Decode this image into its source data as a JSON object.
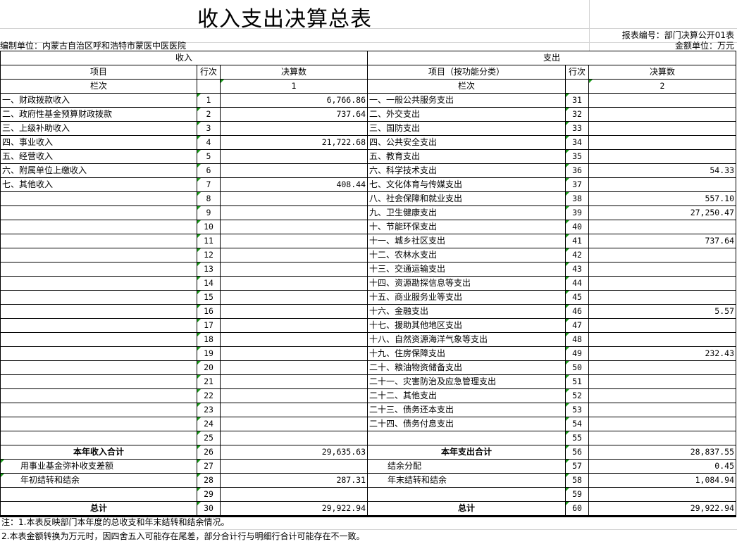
{
  "title": "收入支出决算总表",
  "report_code": "报表编号：部门决算公开01表",
  "unit_org": "编制单位：内蒙古自治区呼和浩特市蒙医中医医院",
  "amount_unit": "金额单位：万元",
  "header": {
    "income": "收入",
    "expense": "支出",
    "item": "项目",
    "row_no": "行次",
    "amount": "决算数",
    "expense_item": "项目（按功能分类）",
    "column_label": "栏次",
    "income_col": "1",
    "expense_col": "2"
  },
  "rows": [
    {
      "in_item": "一、财政拨款收入",
      "in_no": "1",
      "in_amt": "6,766.86",
      "ex_item": "一、一般公共服务支出",
      "ex_no": "31",
      "ex_amt": ""
    },
    {
      "in_item": "二、政府性基金预算财政拨款",
      "in_no": "2",
      "in_amt": "737.64",
      "ex_item": "二、外交支出",
      "ex_no": "32",
      "ex_amt": ""
    },
    {
      "in_item": "三、上级补助收入",
      "in_no": "3",
      "in_amt": "",
      "ex_item": "三、国防支出",
      "ex_no": "33",
      "ex_amt": ""
    },
    {
      "in_item": "四、事业收入",
      "in_no": "4",
      "in_amt": "21,722.68",
      "ex_item": "四、公共安全支出",
      "ex_no": "34",
      "ex_amt": ""
    },
    {
      "in_item": "五、经营收入",
      "in_no": "5",
      "in_amt": "",
      "ex_item": "五、教育支出",
      "ex_no": "35",
      "ex_amt": ""
    },
    {
      "in_item": "六、附属单位上缴收入",
      "in_no": "6",
      "in_amt": "",
      "ex_item": "六、科学技术支出",
      "ex_no": "36",
      "ex_amt": "54.33"
    },
    {
      "in_item": "七、其他收入",
      "in_no": "7",
      "in_amt": "408.44",
      "ex_item": "七、文化体育与传媒支出",
      "ex_no": "37",
      "ex_amt": ""
    },
    {
      "in_item": "",
      "in_no": "8",
      "in_amt": "",
      "ex_item": "八、社会保障和就业支出",
      "ex_no": "38",
      "ex_amt": "557.10"
    },
    {
      "in_item": "",
      "in_no": "9",
      "in_amt": "",
      "ex_item": "九、卫生健康支出",
      "ex_no": "39",
      "ex_amt": "27,250.47"
    },
    {
      "in_item": "",
      "in_no": "10",
      "in_amt": "",
      "ex_item": "十、节能环保支出",
      "ex_no": "40",
      "ex_amt": ""
    },
    {
      "in_item": "",
      "in_no": "11",
      "in_amt": "",
      "ex_item": "十一、城乡社区支出",
      "ex_no": "41",
      "ex_amt": "737.64"
    },
    {
      "in_item": "",
      "in_no": "12",
      "in_amt": "",
      "ex_item": "十二、农林水支出",
      "ex_no": "42",
      "ex_amt": ""
    },
    {
      "in_item": "",
      "in_no": "13",
      "in_amt": "",
      "ex_item": "十三、交通运输支出",
      "ex_no": "43",
      "ex_amt": ""
    },
    {
      "in_item": "",
      "in_no": "14",
      "in_amt": "",
      "ex_item": "十四、资源勘探信息等支出",
      "ex_no": "44",
      "ex_amt": ""
    },
    {
      "in_item": "",
      "in_no": "15",
      "in_amt": "",
      "ex_item": "十五、商业服务业等支出",
      "ex_no": "45",
      "ex_amt": ""
    },
    {
      "in_item": "",
      "in_no": "16",
      "in_amt": "",
      "ex_item": "十六、金融支出",
      "ex_no": "46",
      "ex_amt": "5.57"
    },
    {
      "in_item": "",
      "in_no": "17",
      "in_amt": "",
      "ex_item": "十七、援助其他地区支出",
      "ex_no": "47",
      "ex_amt": ""
    },
    {
      "in_item": "",
      "in_no": "18",
      "in_amt": "",
      "ex_item": "十八、自然资源海洋气象等支出",
      "ex_no": "48",
      "ex_amt": ""
    },
    {
      "in_item": "",
      "in_no": "19",
      "in_amt": "",
      "ex_item": "十九、住房保障支出",
      "ex_no": "49",
      "ex_amt": "232.43"
    },
    {
      "in_item": "",
      "in_no": "20",
      "in_amt": "",
      "ex_item": "二十、粮油物资储备支出",
      "ex_no": "50",
      "ex_amt": ""
    },
    {
      "in_item": "",
      "in_no": "21",
      "in_amt": "",
      "ex_item": "二十一、灾害防治及应急管理支出",
      "ex_no": "51",
      "ex_amt": ""
    },
    {
      "in_item": "",
      "in_no": "22",
      "in_amt": "",
      "ex_item": "二十二、其他支出",
      "ex_no": "52",
      "ex_amt": ""
    },
    {
      "in_item": "",
      "in_no": "23",
      "in_amt": "",
      "ex_item": "二十三、债务还本支出",
      "ex_no": "53",
      "ex_amt": ""
    },
    {
      "in_item": "",
      "in_no": "24",
      "in_amt": "",
      "ex_item": "二十四、债务付息支出",
      "ex_no": "54",
      "ex_amt": ""
    },
    {
      "in_item": "",
      "in_no": "25",
      "in_amt": "",
      "ex_item": "",
      "ex_no": "55",
      "ex_amt": ""
    },
    {
      "in_item": "本年收入合计",
      "in_no": "26",
      "in_amt": "29,635.63",
      "ex_item": "本年支出合计",
      "ex_no": "56",
      "ex_amt": "28,837.55",
      "style": "bold"
    },
    {
      "in_item": "用事业基金弥补收支差额",
      "in_no": "27",
      "in_amt": "",
      "ex_item": "结余分配",
      "ex_no": "57",
      "ex_amt": "0.45",
      "style": "indent"
    },
    {
      "in_item": "年初结转和结余",
      "in_no": "28",
      "in_amt": "287.31",
      "ex_item": "年末结转和结余",
      "ex_no": "58",
      "ex_amt": "1,084.94",
      "style": "indent"
    },
    {
      "in_item": "",
      "in_no": "29",
      "in_amt": "",
      "ex_item": "",
      "ex_no": "59",
      "ex_amt": ""
    },
    {
      "in_item": "总计",
      "in_no": "30",
      "in_amt": "29,922.94",
      "ex_item": "总计",
      "ex_no": "60",
      "ex_amt": "29,922.94",
      "style": "total"
    }
  ],
  "notes": [
    "注：1.本表反映部门本年度的总收支和年末结转和结余情况。",
    "2.本表金额转换为万元时，因四舍五入可能存在尾差，部分合计行与明细行合计可能存在不一致。"
  ]
}
